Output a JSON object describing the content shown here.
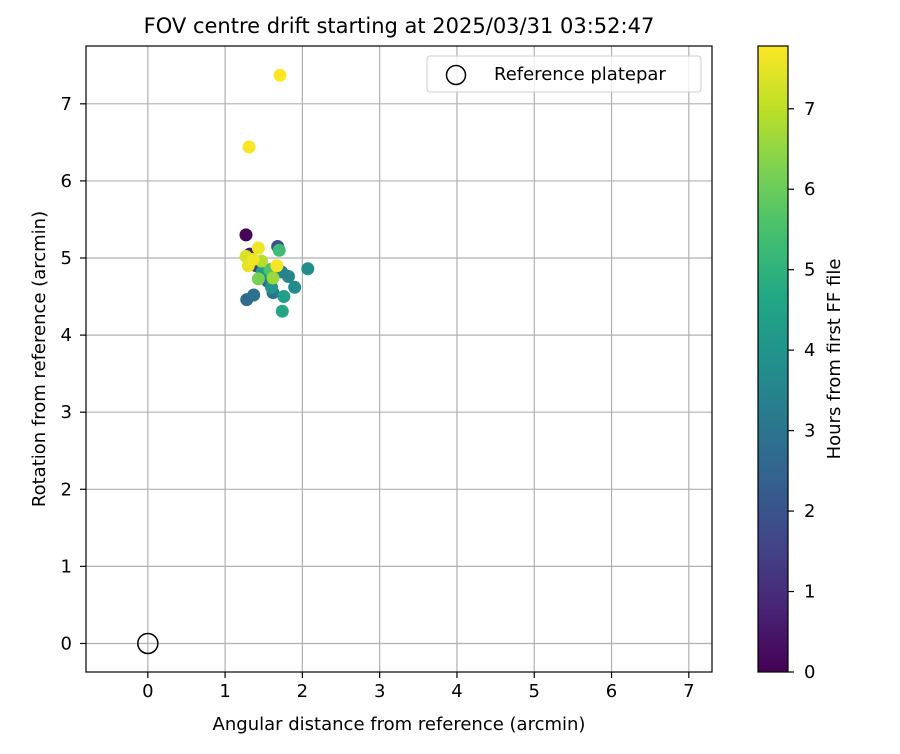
{
  "chart_data": {
    "type": "scatter",
    "title": "FOV centre drift starting at 2025/03/31 03:52:47",
    "xlabel": "Angular distance from reference (arcmin)",
    "ylabel": "Rotation from reference (arcmin)",
    "xlim": [
      -0.8,
      7.3
    ],
    "ylim": [
      -0.37,
      7.75
    ],
    "xticks": [
      0,
      1,
      2,
      3,
      4,
      5,
      6,
      7
    ],
    "yticks": [
      0,
      1,
      2,
      3,
      4,
      5,
      6,
      7
    ],
    "grid": true,
    "legend": {
      "position": "top-right",
      "entries": [
        "Reference platepar"
      ]
    },
    "reference_point": {
      "name": "Reference platepar",
      "x": 0,
      "y": 0
    },
    "colorbar": {
      "label": "Hours from first FF file",
      "range": [
        0,
        7.78
      ],
      "ticks": [
        0,
        1,
        2,
        3,
        4,
        5,
        6,
        7
      ],
      "colormap": "viridis"
    },
    "points": [
      {
        "x": 1.27,
        "y": 5.3,
        "h": 0.1
      },
      {
        "x": 1.32,
        "y": 5.05,
        "h": 0.6
      },
      {
        "x": 1.45,
        "y": 4.95,
        "h": 1.0
      },
      {
        "x": 1.4,
        "y": 4.9,
        "h": 1.4
      },
      {
        "x": 1.68,
        "y": 5.15,
        "h": 1.9
      },
      {
        "x": 1.55,
        "y": 4.7,
        "h": 2.3
      },
      {
        "x": 1.28,
        "y": 4.46,
        "h": 2.7
      },
      {
        "x": 1.37,
        "y": 4.52,
        "h": 2.9
      },
      {
        "x": 1.62,
        "y": 4.55,
        "h": 3.0
      },
      {
        "x": 1.5,
        "y": 4.75,
        "h": 3.2
      },
      {
        "x": 1.73,
        "y": 4.82,
        "h": 3.4
      },
      {
        "x": 1.82,
        "y": 4.76,
        "h": 3.5
      },
      {
        "x": 1.9,
        "y": 4.62,
        "h": 3.7
      },
      {
        "x": 2.07,
        "y": 4.86,
        "h": 3.8
      },
      {
        "x": 1.6,
        "y": 4.62,
        "h": 4.0
      },
      {
        "x": 1.48,
        "y": 4.82,
        "h": 4.2
      },
      {
        "x": 1.76,
        "y": 4.5,
        "h": 4.4
      },
      {
        "x": 1.74,
        "y": 4.31,
        "h": 4.6
      },
      {
        "x": 1.7,
        "y": 5.1,
        "h": 5.3
      },
      {
        "x": 1.58,
        "y": 4.85,
        "h": 5.6
      },
      {
        "x": 1.43,
        "y": 4.73,
        "h": 6.2
      },
      {
        "x": 1.62,
        "y": 4.74,
        "h": 6.6
      },
      {
        "x": 1.47,
        "y": 4.96,
        "h": 6.9
      },
      {
        "x": 1.27,
        "y": 5.02,
        "h": 7.3
      },
      {
        "x": 1.3,
        "y": 4.9,
        "h": 7.5
      },
      {
        "x": 1.43,
        "y": 5.13,
        "h": 7.6
      },
      {
        "x": 1.36,
        "y": 4.98,
        "h": 7.6
      },
      {
        "x": 1.67,
        "y": 4.9,
        "h": 7.7
      },
      {
        "x": 1.31,
        "y": 6.44,
        "h": 7.7
      },
      {
        "x": 1.71,
        "y": 7.37,
        "h": 7.8
      }
    ]
  }
}
